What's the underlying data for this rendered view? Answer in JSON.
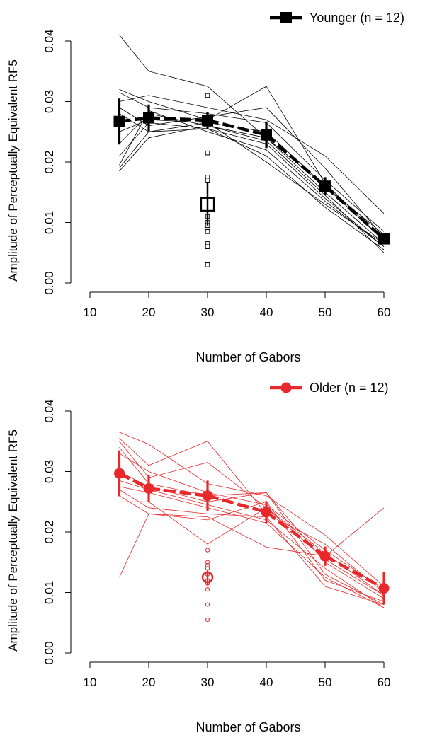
{
  "chart_data": [
    {
      "type": "line",
      "xlabel": "Number of Gabors",
      "ylabel": "Amplitude of Perceptually Equivalent RF5",
      "xlim": [
        10,
        60
      ],
      "ylim": [
        0,
        0.04
      ],
      "xticks": [
        10,
        20,
        30,
        40,
        50,
        60
      ],
      "xtick_labels": [
        "10",
        "20",
        "30",
        "40",
        "50",
        "60"
      ],
      "yticks": [
        0,
        0.01,
        0.02,
        0.03,
        0.04
      ],
      "ytick_labels": [
        "0.00",
        "0.01",
        "0.02",
        "0.03",
        "0.04"
      ],
      "grid": false,
      "legend": {
        "position": "top-right",
        "label": "Younger (n = 12)"
      },
      "color": "#000000",
      "marker": "square",
      "x": [
        15,
        20,
        30,
        40,
        50,
        60
      ],
      "mean": [
        0.0267,
        0.0273,
        0.0269,
        0.0245,
        0.016,
        0.0073
      ],
      "error": [
        0.0038,
        0.0022,
        0.0014,
        0.0022,
        0.0015,
        0.0009
      ],
      "individual_series": [
        [
          0.041,
          0.035,
          0.0325,
          0.024,
          0.016,
          0.008
        ],
        [
          0.032,
          0.03,
          0.027,
          0.0325,
          0.0165,
          0.007
        ],
        [
          0.03,
          0.031,
          0.029,
          0.027,
          0.021,
          0.0115
        ],
        [
          0.0315,
          0.029,
          0.028,
          0.0265,
          0.017,
          0.0085
        ],
        [
          0.029,
          0.026,
          0.0275,
          0.029,
          0.019,
          0.0075
        ],
        [
          0.025,
          0.027,
          0.0265,
          0.025,
          0.016,
          0.007
        ],
        [
          0.023,
          0.028,
          0.026,
          0.024,
          0.015,
          0.0065
        ],
        [
          0.021,
          0.0265,
          0.0255,
          0.023,
          0.014,
          0.006
        ],
        [
          0.0195,
          0.0285,
          0.025,
          0.022,
          0.0135,
          0.006
        ],
        [
          0.019,
          0.025,
          0.0255,
          0.021,
          0.0125,
          0.0055
        ],
        [
          0.0185,
          0.024,
          0.026,
          0.0235,
          0.0145,
          0.005
        ],
        [
          0.028,
          0.025,
          0.0265,
          0.02,
          0.013,
          0.0065
        ]
      ],
      "condition_x30": {
        "mean": 0.013,
        "error": 0.0035,
        "points": [
          0.031,
          0.0215,
          0.0175,
          0.017,
          0.011,
          0.01,
          0.0095,
          0.0085,
          0.0065,
          0.006,
          0.003
        ]
      }
    },
    {
      "type": "line",
      "xlabel": "Number of Gabors",
      "ylabel": "Amplitude of Perceptually Equivalent RF5",
      "xlim": [
        10,
        60
      ],
      "ylim": [
        0,
        0.04
      ],
      "xticks": [
        10,
        20,
        30,
        40,
        50,
        60
      ],
      "xtick_labels": [
        "10",
        "20",
        "30",
        "40",
        "50",
        "60"
      ],
      "yticks": [
        0,
        0.01,
        0.02,
        0.03,
        0.04
      ],
      "ytick_labels": [
        "0.00",
        "0.01",
        "0.02",
        "0.03",
        "0.04"
      ],
      "grid": false,
      "legend": {
        "position": "top-right",
        "label": "Older (n = 12)"
      },
      "color": "#e8282b",
      "marker": "circle",
      "x": [
        15,
        20,
        30,
        40,
        50,
        60
      ],
      "mean": [
        0.0297,
        0.0272,
        0.026,
        0.0233,
        0.016,
        0.0107
      ],
      "error": [
        0.0038,
        0.0022,
        0.0025,
        0.0018,
        0.0016,
        0.0027
      ],
      "individual_series": [
        [
          0.0365,
          0.0345,
          0.028,
          0.026,
          0.0195,
          0.011
        ],
        [
          0.0355,
          0.031,
          0.035,
          0.023,
          0.018,
          0.01
        ],
        [
          0.035,
          0.029,
          0.0315,
          0.024,
          0.0165,
          0.0095
        ],
        [
          0.034,
          0.028,
          0.026,
          0.0265,
          0.015,
          0.009
        ],
        [
          0.03,
          0.0275,
          0.025,
          0.0265,
          0.013,
          0.008
        ],
        [
          0.0285,
          0.027,
          0.0245,
          0.022,
          0.014,
          0.0075
        ],
        [
          0.0275,
          0.0265,
          0.024,
          0.0215,
          0.0125,
          0.0075
        ],
        [
          0.027,
          0.024,
          0.023,
          0.0225,
          0.011,
          0.008
        ],
        [
          0.026,
          0.023,
          0.022,
          0.025,
          0.012,
          0.0085
        ],
        [
          0.025,
          0.025,
          0.018,
          0.024,
          0.0155,
          0.0095
        ],
        [
          0.0125,
          0.023,
          0.0225,
          0.0175,
          0.016,
          0.024
        ],
        [
          0.033,
          0.03,
          0.0265,
          0.0245,
          0.017,
          0.0105
        ]
      ],
      "condition_x30": {
        "mean": 0.0125,
        "error": 0.0013,
        "points": [
          0.017,
          0.015,
          0.0145,
          0.014,
          0.013,
          0.012,
          0.0115,
          0.0105,
          0.008,
          0.0055
        ]
      }
    }
  ]
}
